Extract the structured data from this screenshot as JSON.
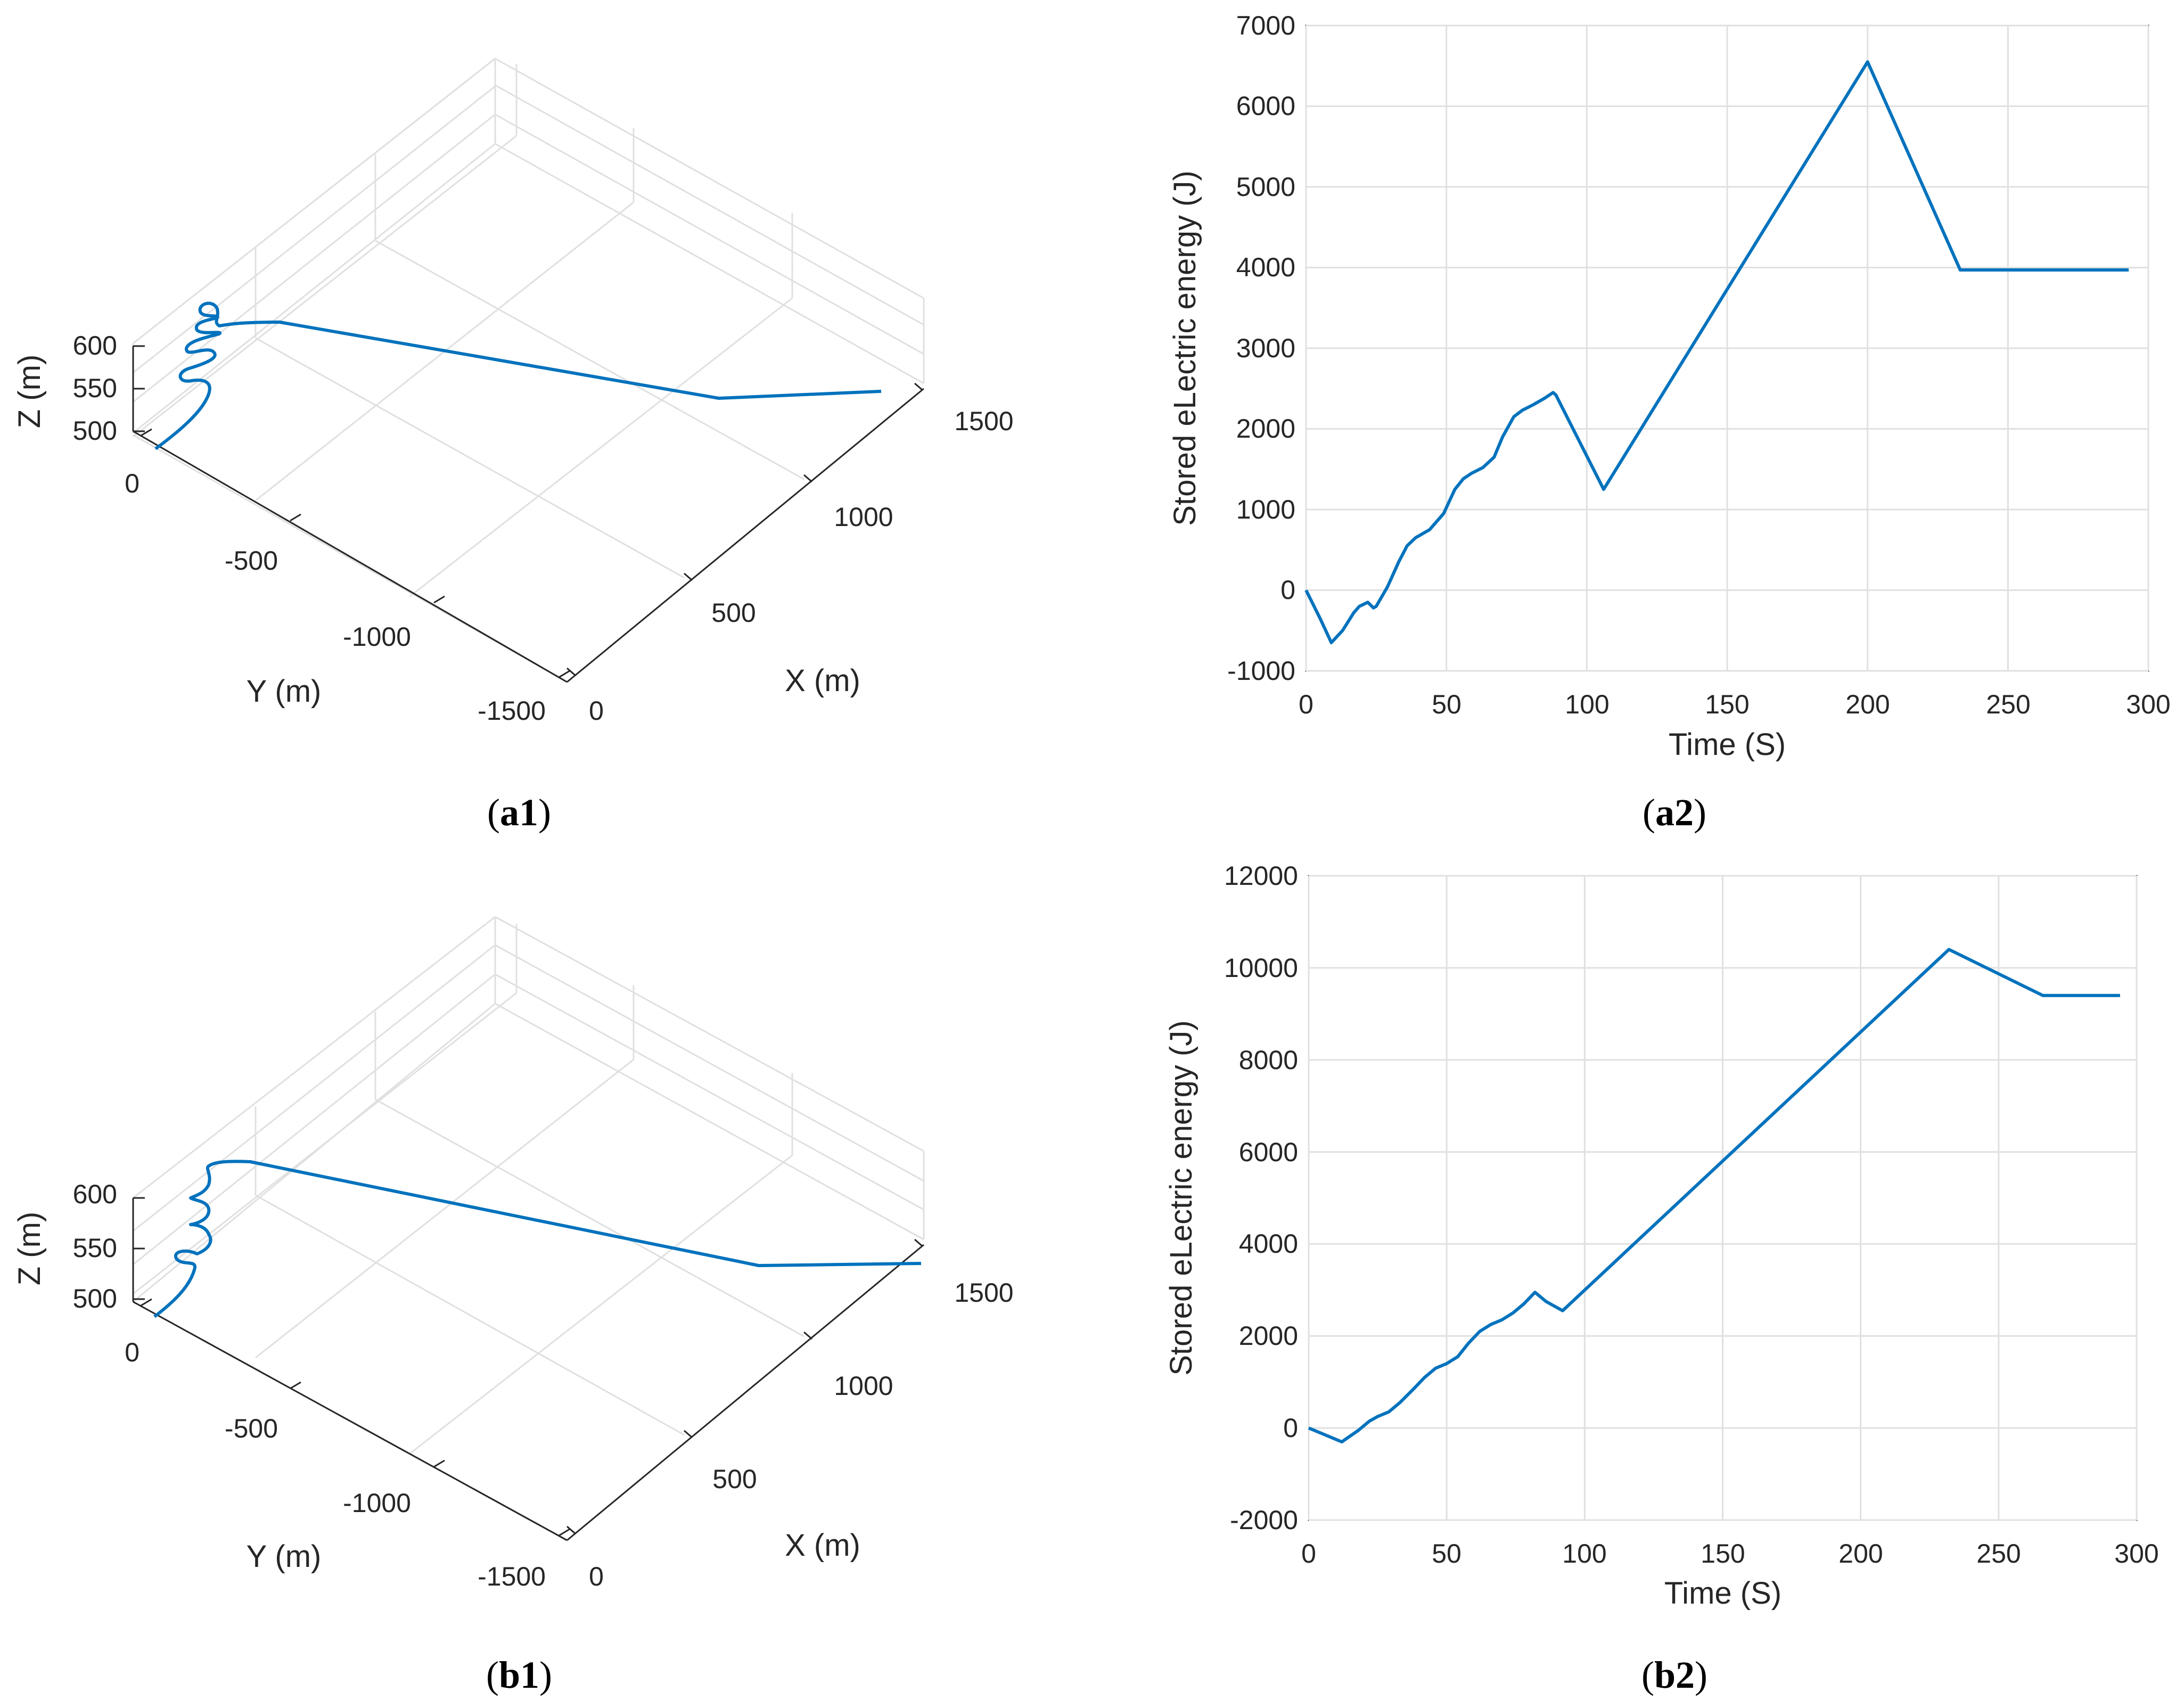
{
  "colors": {
    "line": "#0072BD",
    "grid": "#e0e0e0",
    "axis": "#262626",
    "background": "#ffffff"
  },
  "chart_data": [
    {
      "id": "a1",
      "type": "line3d",
      "caption": {
        "open": "(",
        "bold": "a1",
        "close": ")"
      },
      "xlabel": "X (m)",
      "ylabel": "Y (m)",
      "zlabel": "Z (m)",
      "xticks": [
        "0",
        "500",
        "1000",
        "1500"
      ],
      "yticks": [
        "0",
        "-500",
        "-1000",
        "-1500"
      ],
      "zticks": [
        "500",
        "550",
        "600"
      ],
      "description": "Trajectory: climbing spiral near origin (z 500→600 m), then straight glide segments toward x ≈ 1500 m"
    },
    {
      "id": "a2",
      "type": "line",
      "caption": {
        "open": "(",
        "bold": "a2",
        "close": ")"
      },
      "xlabel": "Time (S)",
      "ylabel": "Stored eLectric energy (J)",
      "xlim": [
        0,
        300
      ],
      "ylim": [
        -1000,
        7000
      ],
      "xticks": [
        "0",
        "50",
        "100",
        "150",
        "200",
        "250",
        "300"
      ],
      "yticks": [
        "-1000",
        "0",
        "1000",
        "2000",
        "3000",
        "4000",
        "5000",
        "6000",
        "7000"
      ],
      "x": [
        0,
        5,
        9,
        13,
        17,
        19,
        22,
        24,
        25,
        29,
        33,
        36,
        39,
        44,
        49,
        53,
        56,
        59,
        63,
        67,
        70,
        74,
        77,
        81,
        85,
        88,
        89,
        106,
        200,
        233,
        293
      ],
      "y": [
        0,
        -350,
        -650,
        -500,
        -280,
        -200,
        -150,
        -220,
        -200,
        40,
        350,
        550,
        650,
        750,
        950,
        1250,
        1380,
        1450,
        1520,
        1650,
        1900,
        2150,
        2230,
        2300,
        2380,
        2450,
        2420,
        1250,
        6550,
        3970,
        3970
      ]
    },
    {
      "id": "b1",
      "type": "line3d",
      "caption": {
        "open": "(",
        "bold": "b1",
        "close": ")"
      },
      "xlabel": "X (m)",
      "ylabel": "Y (m)",
      "zlabel": "Z (m)",
      "xticks": [
        "0",
        "500",
        "1000",
        "1500"
      ],
      "yticks": [
        "0",
        "-500",
        "-1000",
        "-1500"
      ],
      "zticks": [
        "500",
        "550",
        "600"
      ],
      "description": "Trajectory: climbing spiral near origin (z 500→600 m), then straight glide segments toward x ≈ 1500 m"
    },
    {
      "id": "b2",
      "type": "line",
      "caption": {
        "open": "(",
        "bold": "b2",
        "close": ")"
      },
      "xlabel": "Time (S)",
      "ylabel": "Stored eLectric energy (J)",
      "xlim": [
        0,
        300
      ],
      "ylim": [
        -2000,
        12000
      ],
      "xticks": [
        "0",
        "50",
        "100",
        "150",
        "200",
        "250",
        "300"
      ],
      "yticks": [
        "-2000",
        "0",
        "2000",
        "4000",
        "6000",
        "8000",
        "10000",
        "12000"
      ],
      "x": [
        0,
        6,
        12,
        18,
        22,
        25,
        29,
        33,
        38,
        42,
        46,
        50,
        54,
        58,
        62,
        66,
        70,
        74,
        78,
        82,
        86,
        92,
        232,
        266,
        294
      ],
      "y": [
        0,
        -150,
        -300,
        -50,
        150,
        250,
        350,
        550,
        850,
        1100,
        1300,
        1400,
        1550,
        1850,
        2100,
        2250,
        2350,
        2500,
        2700,
        2950,
        2750,
        2550,
        10400,
        9400,
        9400
      ]
    }
  ]
}
